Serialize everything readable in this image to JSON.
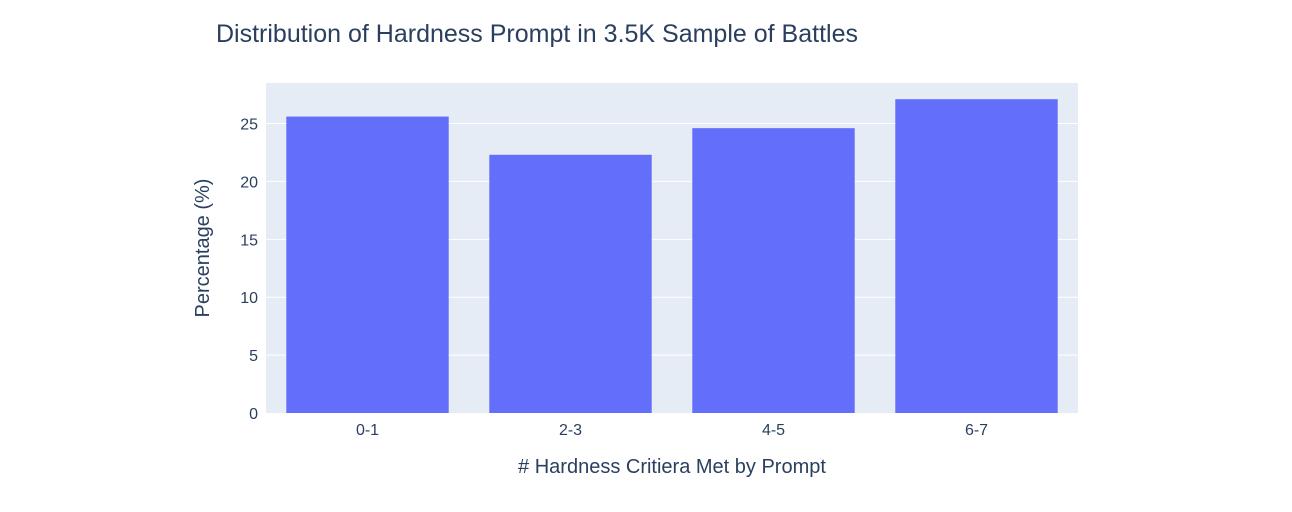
{
  "chart_data": {
    "type": "bar",
    "title": "Distribution of Hardness Prompt in 3.5K Sample of Battles",
    "xlabel": "# Hardness Critiera Met by Prompt",
    "ylabel": "Percentage (%)",
    "categories": [
      "0-1",
      "2-3",
      "4-5",
      "6-7"
    ],
    "values": [
      25.6,
      22.3,
      24.6,
      27.1
    ],
    "ylim": [
      0,
      28.5
    ],
    "yticks": [
      0,
      5,
      10,
      15,
      20,
      25
    ],
    "grid": true,
    "colors": {
      "bar": "#636efa",
      "plot_background": "#e5ecf6",
      "gridline": "#ffffff",
      "text": "#2a3f5f"
    }
  }
}
